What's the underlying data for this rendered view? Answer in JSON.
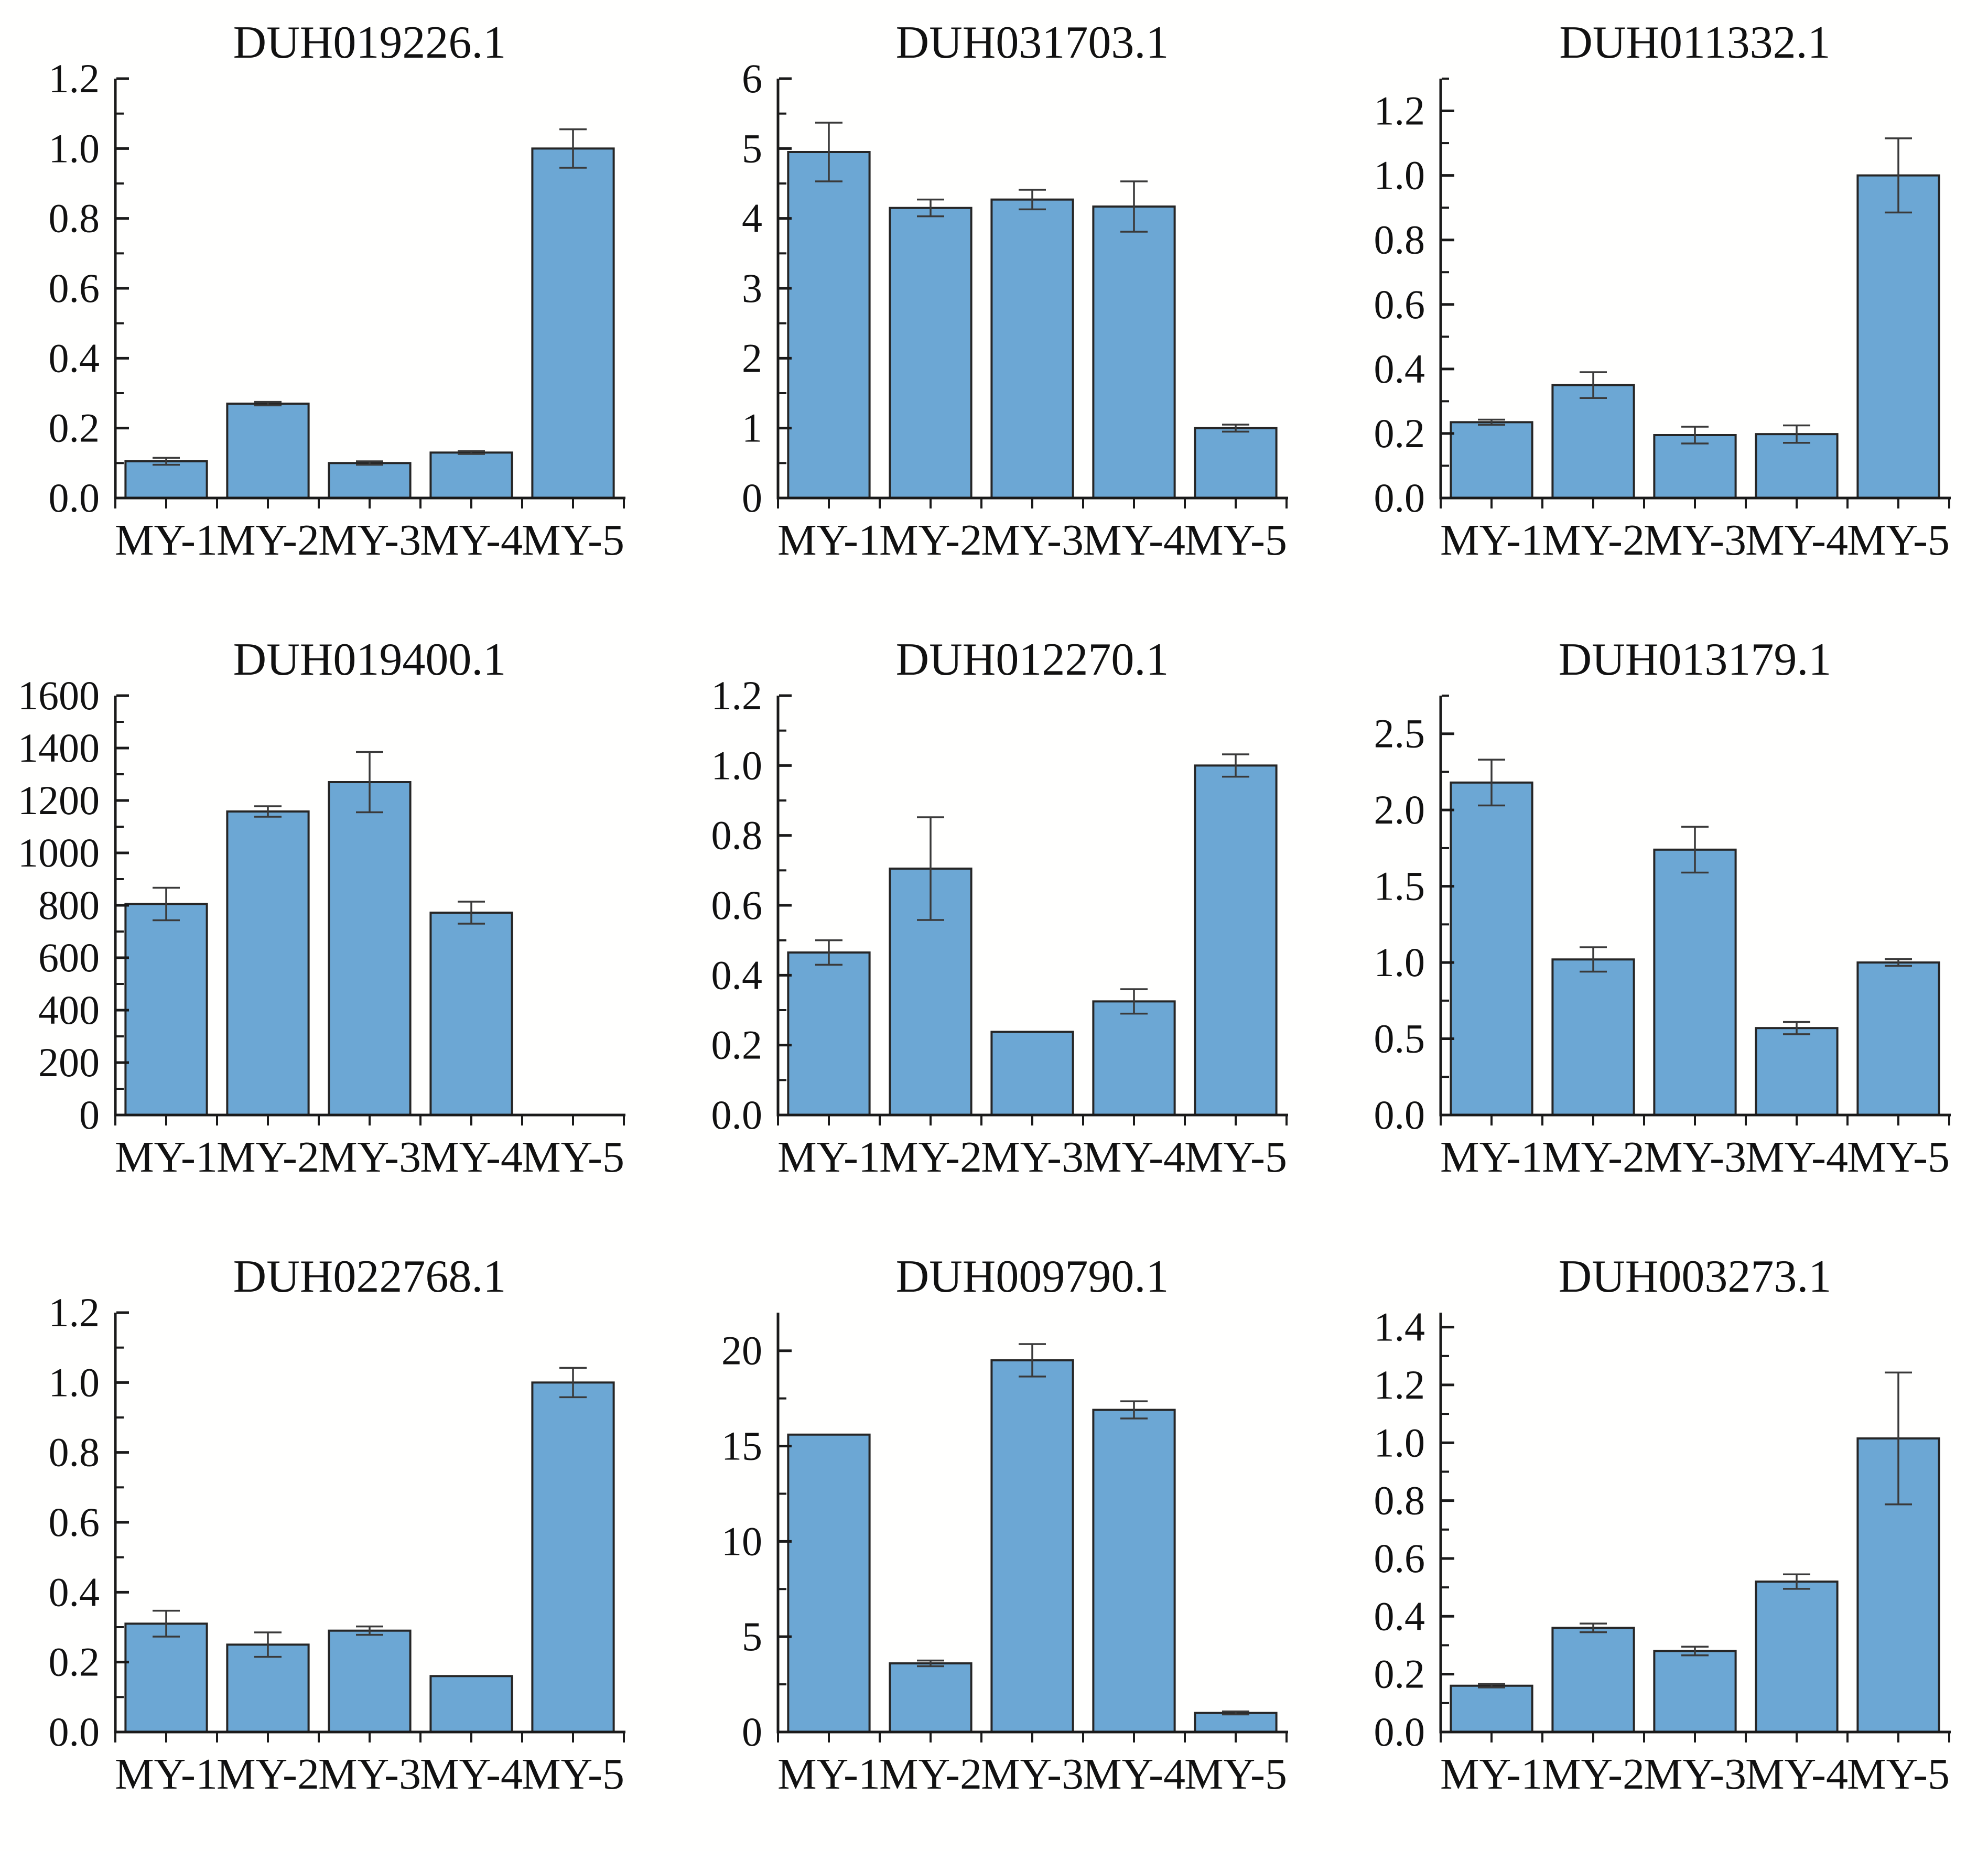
{
  "figure": {
    "background": "#FFFFFE",
    "grid": {
      "rows": 3,
      "cols": 3
    }
  },
  "style": {
    "bar_fill": "#6CA7D4",
    "bar_edge": "#262626",
    "axis_color": "#1A1A1A",
    "error_color": "#3A3A3A",
    "text_color": "#111111"
  },
  "chart_data": [
    {
      "type": "bar",
      "title": "DUH019226.1",
      "categories": [
        "MY-1",
        "MY-2",
        "MY-3",
        "MY-4",
        "MY-5"
      ],
      "values": [
        0.105,
        0.27,
        0.1,
        0.13,
        1.0
      ],
      "errors": [
        0.01,
        0.005,
        0.005,
        0.004,
        0.055
      ],
      "xlabel": "",
      "ylabel": "",
      "ylim": [
        0,
        1.2
      ],
      "ytick_step": 0.2,
      "ytick_decimals": 1,
      "grid_lines": false,
      "legend": "none"
    },
    {
      "type": "bar",
      "title": "DUH031703.1",
      "categories": [
        "MY-1",
        "MY-2",
        "MY-3",
        "MY-4",
        "MY-5"
      ],
      "values": [
        4.95,
        4.15,
        4.27,
        4.17,
        1.0
      ],
      "errors": [
        0.42,
        0.12,
        0.14,
        0.36,
        0.05
      ],
      "xlabel": "",
      "ylabel": "",
      "ylim": [
        0,
        6
      ],
      "ytick_step": 1,
      "ytick_decimals": 0,
      "grid_lines": false,
      "legend": "none"
    },
    {
      "type": "bar",
      "title": "DUH011332.1",
      "categories": [
        "MY-1",
        "MY-2",
        "MY-3",
        "MY-4",
        "MY-5"
      ],
      "values": [
        0.235,
        0.35,
        0.195,
        0.198,
        1.0
      ],
      "errors": [
        0.008,
        0.04,
        0.026,
        0.027,
        0.115
      ],
      "xlabel": "",
      "ylabel": "",
      "ylim": [
        0,
        1.3
      ],
      "ytick_step": 0.2,
      "ytick_decimals": 1,
      "grid_lines": false,
      "legend": "none"
    },
    {
      "type": "bar",
      "title": "DUH019400.1",
      "categories": [
        "MY-1",
        "MY-2",
        "MY-3",
        "MY-4",
        "MY-5"
      ],
      "values": [
        805,
        1158,
        1270,
        772,
        0
      ],
      "errors": [
        62,
        20,
        115,
        42,
        0
      ],
      "xlabel": "",
      "ylabel": "",
      "ylim": [
        0,
        1600
      ],
      "ytick_step": 200,
      "ytick_decimals": 0,
      "grid_lines": false,
      "legend": "none"
    },
    {
      "type": "bar",
      "title": "DUH012270.1",
      "categories": [
        "MY-1",
        "MY-2",
        "MY-3",
        "MY-4",
        "MY-5"
      ],
      "values": [
        0.465,
        0.705,
        0.238,
        0.325,
        1.0
      ],
      "errors": [
        0.035,
        0.147,
        0,
        0.035,
        0.032
      ],
      "xlabel": "",
      "ylabel": "",
      "ylim": [
        0,
        1.2
      ],
      "ytick_step": 0.2,
      "ytick_decimals": 1,
      "grid_lines": false,
      "legend": "none"
    },
    {
      "type": "bar",
      "title": "DUH013179.1",
      "categories": [
        "MY-1",
        "MY-2",
        "MY-3",
        "MY-4",
        "MY-5"
      ],
      "values": [
        2.18,
        1.02,
        1.74,
        0.57,
        1.0
      ],
      "errors": [
        0.15,
        0.08,
        0.15,
        0.04,
        0.022
      ],
      "xlabel": "",
      "ylabel": "",
      "ylim": [
        0,
        2.75
      ],
      "ytick_step": 0.5,
      "ytick_decimals": 1,
      "grid_lines": false,
      "legend": "none"
    },
    {
      "type": "bar",
      "title": "DUH022768.1",
      "categories": [
        "MY-1",
        "MY-2",
        "MY-3",
        "MY-4",
        "MY-5"
      ],
      "values": [
        0.31,
        0.25,
        0.29,
        0.16,
        1.0
      ],
      "errors": [
        0.037,
        0.035,
        0.012,
        0,
        0.042
      ],
      "xlabel": "",
      "ylabel": "",
      "ylim": [
        0,
        1.2
      ],
      "ytick_step": 0.2,
      "ytick_decimals": 1,
      "grid_lines": false,
      "legend": "none"
    },
    {
      "type": "bar",
      "title": "DUH009790.1",
      "categories": [
        "MY-1",
        "MY-2",
        "MY-3",
        "MY-4",
        "MY-5"
      ],
      "values": [
        15.6,
        3.6,
        19.5,
        16.9,
        1.0
      ],
      "errors": [
        0,
        0.15,
        0.85,
        0.45,
        0.08
      ],
      "xlabel": "",
      "ylabel": "",
      "ylim": [
        0,
        22
      ],
      "ytick_step": 5,
      "ytick_decimals": 0,
      "grid_lines": false,
      "legend": "none"
    },
    {
      "type": "bar",
      "title": "DUH003273.1",
      "categories": [
        "MY-1",
        "MY-2",
        "MY-3",
        "MY-4",
        "MY-5"
      ],
      "values": [
        0.16,
        0.36,
        0.28,
        0.52,
        1.015
      ],
      "errors": [
        0.006,
        0.015,
        0.015,
        0.025,
        0.228
      ],
      "xlabel": "",
      "ylabel": "",
      "ylim": [
        0,
        1.45
      ],
      "ytick_step": 0.2,
      "ytick_decimals": 1,
      "grid_lines": false,
      "legend": "none"
    }
  ]
}
